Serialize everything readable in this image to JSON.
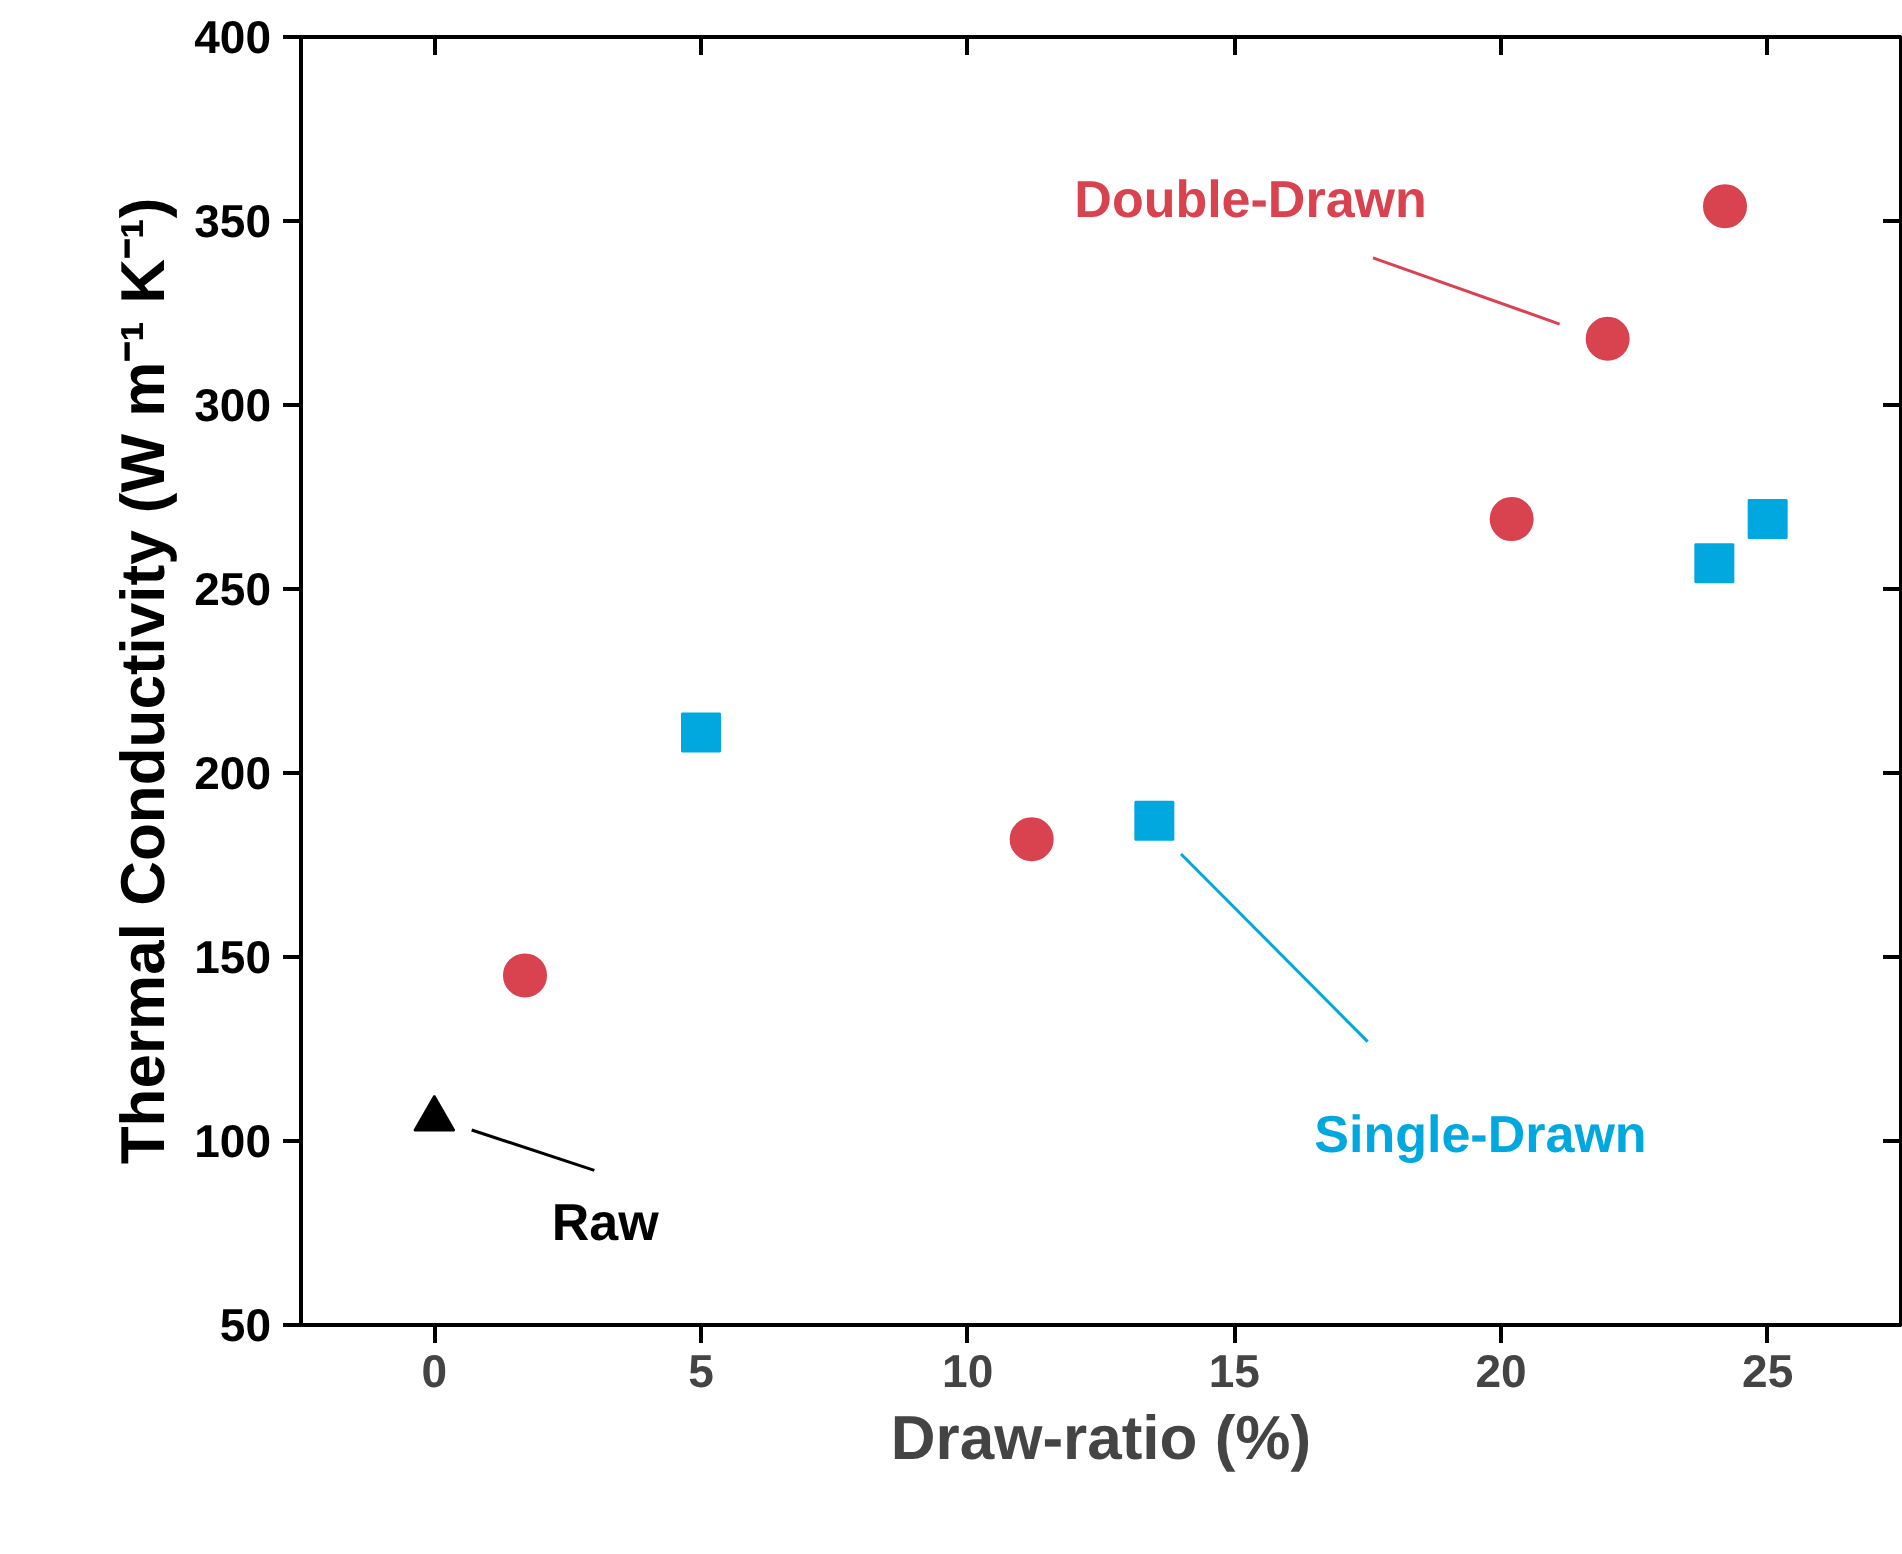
{
  "chart_data": {
    "type": "scatter",
    "xlabel": "Draw-ratio (%)",
    "ylabel": "Thermal Conductivity (W m⁻¹ K⁻¹)",
    "xlim": [
      -2.5,
      27.5
    ],
    "xticks": [
      0,
      5,
      10,
      15,
      20,
      25
    ],
    "ylim": [
      50,
      400
    ],
    "yticks": [
      50,
      100,
      150,
      200,
      250,
      300,
      350,
      400
    ],
    "grid": false,
    "series": [
      {
        "name": "Raw",
        "color": "#000000",
        "marker": "triangle",
        "x": [
          0
        ],
        "values": [
          106
        ]
      },
      {
        "name": "Single-Drawn",
        "color": "#00a8e0",
        "marker": "square",
        "x": [
          5,
          13.5,
          24,
          25
        ],
        "values": [
          211,
          187,
          257,
          269
        ]
      },
      {
        "name": "Double-Drawn",
        "color": "#d9424f",
        "marker": "circle",
        "x": [
          1.7,
          11.2,
          20.2,
          22,
          24.2
        ],
        "values": [
          145,
          182,
          269,
          318,
          354
        ]
      }
    ]
  }
}
